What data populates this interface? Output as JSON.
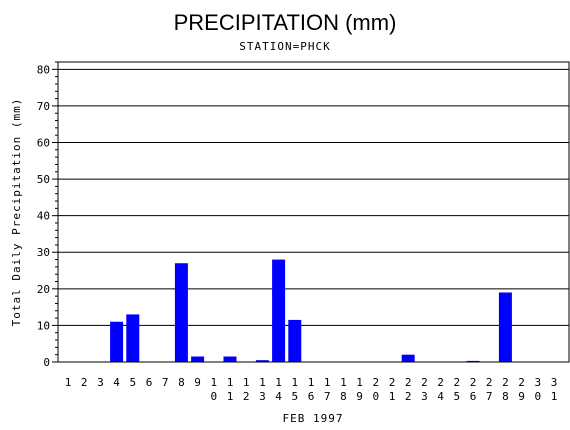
{
  "chart_data": {
    "type": "bar",
    "title": "PRECIPITATION (mm)",
    "subtitle": "STATION=PHCK",
    "xlabel": "FEB 1997",
    "ylabel": "Total Daily Precipitation (mm)",
    "categories": [
      "1",
      "2",
      "3",
      "4",
      "5",
      "6",
      "7",
      "8",
      "9",
      "10",
      "11",
      "12",
      "13",
      "14",
      "15",
      "16",
      "17",
      "18",
      "19",
      "20",
      "21",
      "22",
      "23",
      "24",
      "25",
      "26",
      "27",
      "28",
      "29",
      "30",
      "31"
    ],
    "values": [
      0,
      0,
      0,
      11,
      13,
      0,
      0,
      27,
      1.5,
      0,
      1.5,
      0,
      0.5,
      28,
      11.5,
      0,
      0,
      0,
      0,
      0,
      0,
      2,
      0,
      0,
      0,
      0.3,
      0,
      19,
      0,
      0,
      0
    ],
    "ylim": [
      0,
      82
    ],
    "yticks": [
      0,
      10,
      20,
      30,
      40,
      50,
      60,
      70,
      80
    ],
    "grid": true,
    "colors": {
      "bar": "#0000ff",
      "axis": "#000000",
      "grid": "#000000"
    }
  }
}
